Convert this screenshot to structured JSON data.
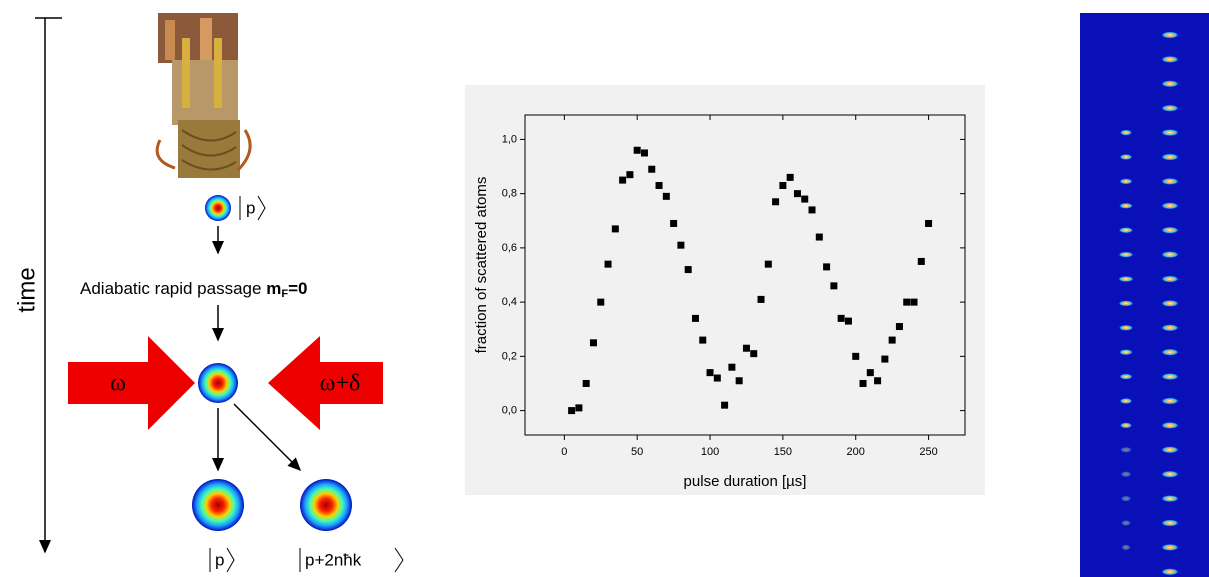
{
  "chart_data": {
    "type": "scatter",
    "xlabel": "pulse duration [µs]",
    "ylabel": "fraction of scattered atoms",
    "color": "#000000",
    "x": [
      5,
      10,
      15,
      20,
      25,
      30,
      35,
      40,
      45,
      50,
      55,
      60,
      65,
      70,
      75,
      80,
      85,
      90,
      95,
      100,
      105,
      110,
      115,
      120,
      125,
      130,
      135,
      140,
      145,
      150,
      155,
      160,
      165,
      170,
      175,
      180,
      185,
      190,
      195,
      200,
      205,
      210,
      215,
      220,
      225,
      230,
      235,
      240,
      245,
      250
    ],
    "values": [
      0.0,
      0.01,
      0.1,
      0.25,
      0.4,
      0.54,
      0.67,
      0.85,
      0.87,
      0.96,
      0.95,
      0.89,
      0.83,
      0.79,
      0.69,
      0.61,
      0.52,
      0.34,
      0.26,
      0.14,
      0.12,
      0.02,
      0.16,
      0.11,
      0.23,
      0.21,
      0.41,
      0.54,
      0.77,
      0.83,
      0.86,
      0.8,
      0.78,
      0.74,
      0.64,
      0.53,
      0.46,
      0.34,
      0.33,
      0.2,
      0.1,
      0.14,
      0.11,
      0.19,
      0.26,
      0.31,
      0.4,
      0.4,
      0.55,
      0.69
    ],
    "xlim": [
      -27,
      275
    ],
    "xticks": [
      0,
      50,
      100,
      150,
      200,
      250
    ],
    "ylim": [
      -0.09,
      1.09
    ],
    "yticks": [
      {
        "value": 0,
        "label": "0,0"
      },
      {
        "value": 0.2,
        "label": "0,2"
      },
      {
        "value": 0.4,
        "label": "0,4"
      },
      {
        "value": 0.6,
        "label": "0,6"
      },
      {
        "value": 0.8,
        "label": "0,8"
      },
      {
        "value": 1.0,
        "label": "1,0"
      }
    ]
  },
  "diagram": {
    "time_label": "time",
    "initial_state": "p",
    "passage": {
      "text": "Adiabatic rapid passage",
      "symbol": "m",
      "subscript": "F",
      "value": "=0"
    },
    "left_beam": "ω",
    "right_beam": "ω+δ",
    "final_states": [
      "p",
      "p+2nħk"
    ]
  }
}
